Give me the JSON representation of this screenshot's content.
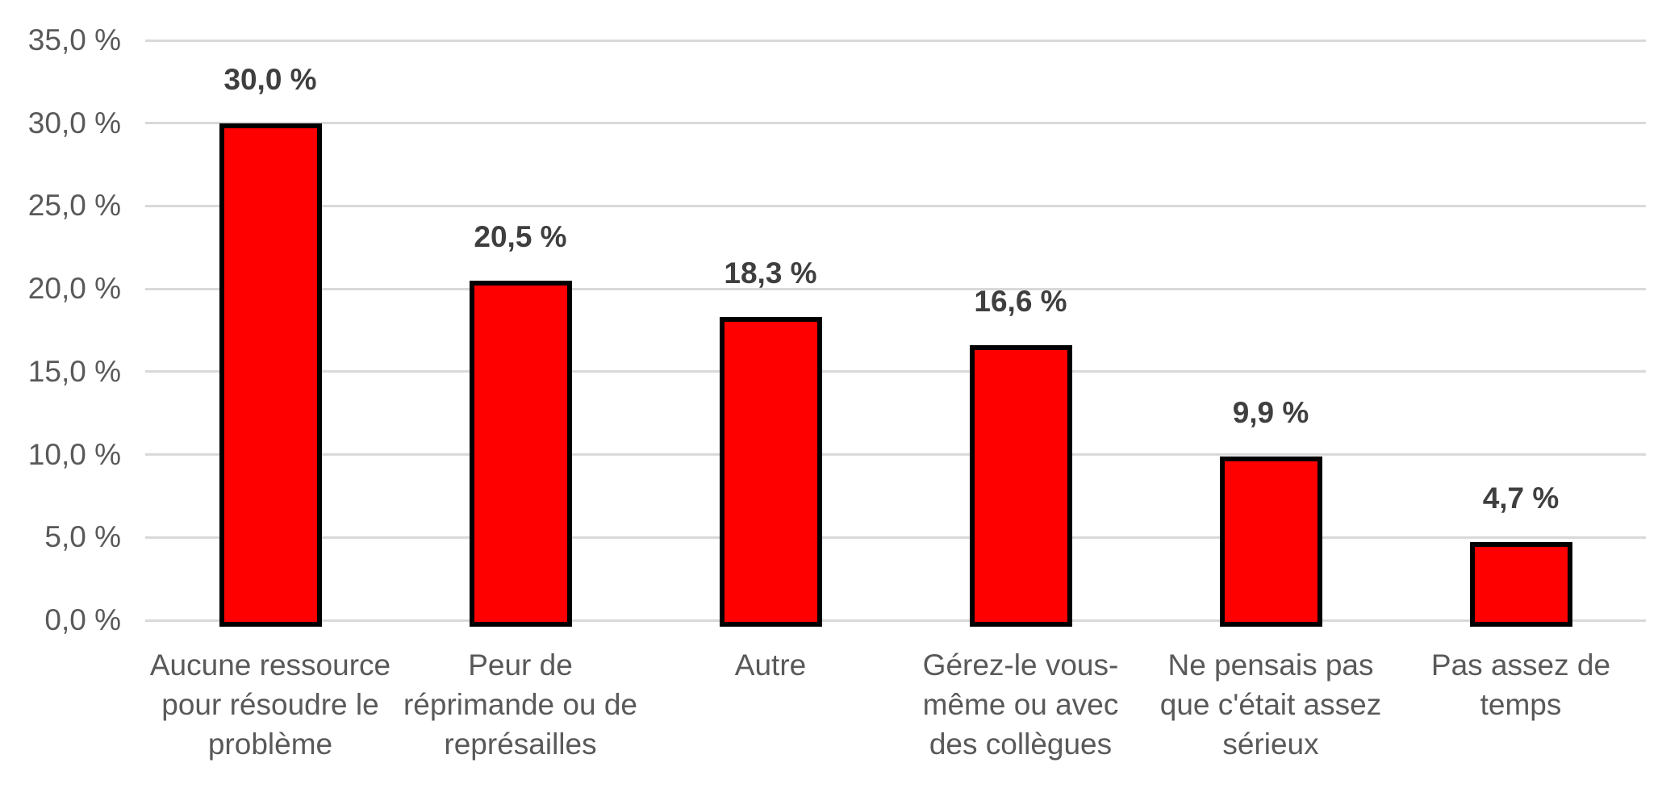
{
  "chart_data": {
    "type": "bar",
    "title": "",
    "xlabel": "",
    "ylabel": "",
    "categories": [
      "Aucune ressource pour résoudre le problème",
      "Peur de réprimande ou de représailles",
      "Autre",
      "Gérez-le vous-même ou avec des collègues",
      "Ne pensais pas que c'était assez sérieux",
      "Pas assez de temps"
    ],
    "category_label_lines": [
      [
        "Aucune ressource",
        "pour résoudre le",
        "problème"
      ],
      [
        "Peur de",
        "réprimande ou de",
        "représailles"
      ],
      [
        "Autre"
      ],
      [
        "Gérez-le vous-",
        "même ou avec",
        "des collègues"
      ],
      [
        "Ne pensais pas",
        "que c'était assez",
        "sérieux"
      ],
      [
        "Pas assez de",
        "temps"
      ]
    ],
    "values": [
      30.0,
      20.5,
      18.3,
      16.6,
      9.9,
      4.7
    ],
    "value_labels": [
      "30,0 %",
      "20,5 %",
      "18,3 %",
      "16,6 %",
      "9,9 %",
      "4,7 %"
    ],
    "ylim": [
      0,
      35
    ],
    "y_tick_values": [
      0,
      5,
      10,
      15,
      20,
      25,
      30,
      35
    ],
    "y_tick_labels": [
      "0,0 %",
      "5,0 %",
      "10,0 %",
      "15,0 %",
      "20,0 %",
      "25,0 %",
      "30,0 %",
      "35,0 %"
    ],
    "grid": true,
    "legend": false,
    "colors": {
      "bar_fill": "#ff0000",
      "bar_border": "#000000",
      "gridline": "#d9d9d9",
      "axis_label": "#595959",
      "value_label": "#3f3f3f",
      "background": "#ffffff"
    }
  }
}
